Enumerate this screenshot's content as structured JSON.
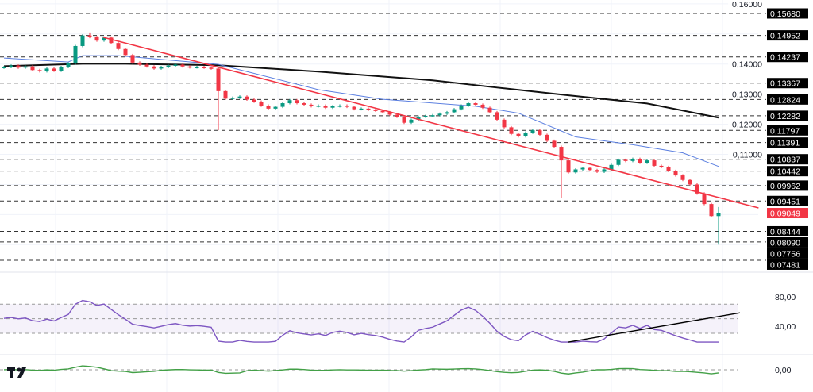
{
  "chart_data": {
    "type": "candlestick",
    "title": "",
    "colors": {
      "up": "#089981",
      "down": "#f23645",
      "ma_short": "#5b7fe0",
      "ma_long": "#111111",
      "trendline": "#f23645",
      "rsi": "#7e57c2",
      "momentum": "#43a047",
      "price_label": "#f23645"
    },
    "price_axis": {
      "range": [
        0.0735,
        0.1605
      ],
      "ticks": [
        "0,16000",
        "0,14000",
        "0,13000",
        "0,12000",
        "0,11000"
      ],
      "tick_values": [
        0.16,
        0.14,
        0.13,
        0.12,
        0.11
      ]
    },
    "levels": [
      {
        "value": 0.1568,
        "label": "0,15680"
      },
      {
        "value": 0.14952,
        "label": "0,14952"
      },
      {
        "value": 0.14237,
        "label": "0,14237"
      },
      {
        "value": 0.13367,
        "label": "0,13367"
      },
      {
        "value": 0.12824,
        "label": "0,12824"
      },
      {
        "value": 0.12282,
        "label": "0,12282"
      },
      {
        "value": 0.11797,
        "label": "0,11797"
      },
      {
        "value": 0.11391,
        "label": "0,11391"
      },
      {
        "value": 0.10837,
        "label": "0,10837"
      },
      {
        "value": 0.10442,
        "label": "0,10442"
      },
      {
        "value": 0.09962,
        "label": "0,09962"
      },
      {
        "value": 0.09451,
        "label": "0,09451"
      },
      {
        "value": 0.08444,
        "label": "0,08444"
      },
      {
        "value": 0.0809,
        "label": "0,08090"
      },
      {
        "value": 0.07756,
        "label": "0,07756"
      },
      {
        "value": 0.07481,
        "label": "0,07481"
      }
    ],
    "current_price": {
      "value": 0.09049,
      "label": "0,09049"
    },
    "closes": [
      0.139,
      0.1395,
      0.1388,
      0.1392,
      0.138,
      0.1376,
      0.1385,
      0.1378,
      0.139,
      0.1402,
      0.146,
      0.1495,
      0.149,
      0.1478,
      0.1488,
      0.147,
      0.145,
      0.143,
      0.1405,
      0.1398,
      0.1392,
      0.1385,
      0.139,
      0.1395,
      0.1398,
      0.1392,
      0.1389,
      0.139,
      0.1388,
      0.1385,
      0.131,
      0.1285,
      0.1288,
      0.1292,
      0.1282,
      0.1275,
      0.1262,
      0.1252,
      0.1258,
      0.127,
      0.128,
      0.127,
      0.1265,
      0.126,
      0.1262,
      0.1255,
      0.126,
      0.1262,
      0.1258,
      0.125,
      0.1252,
      0.1248,
      0.1245,
      0.124,
      0.1232,
      0.1225,
      0.1205,
      0.1215,
      0.1225,
      0.1228,
      0.123,
      0.1235,
      0.124,
      0.125,
      0.1262,
      0.127,
      0.1265,
      0.1255,
      0.124,
      0.1215,
      0.119,
      0.1168,
      0.116,
      0.1172,
      0.118,
      0.1165,
      0.1145,
      0.1125,
      0.108,
      0.104,
      0.105,
      0.1055,
      0.1048,
      0.1042,
      0.105,
      0.1065,
      0.1082,
      0.1078,
      0.1085,
      0.1072,
      0.108,
      0.1062,
      0.1058,
      0.1045,
      0.103,
      0.1015,
      0.1,
      0.097,
      0.0935,
      0.0895,
      0.0905
    ],
    "first_open": 0.1388,
    "long_wicks": [
      {
        "i": 30,
        "low": 0.118
      },
      {
        "i": 78,
        "low": 0.0955
      },
      {
        "i": 100,
        "low": 0.08,
        "high": 0.0925
      },
      {
        "i": 12,
        "high": 0.1505
      }
    ],
    "ma_short": [
      [
        0,
        0.142
      ],
      [
        9,
        0.1407
      ],
      [
        11,
        0.1428
      ],
      [
        16,
        0.1428
      ],
      [
        30,
        0.1399
      ],
      [
        44,
        0.1315
      ],
      [
        53,
        0.1283
      ],
      [
        66,
        0.126
      ],
      [
        72,
        0.1237
      ],
      [
        80,
        0.1158
      ],
      [
        88,
        0.1132
      ],
      [
        95,
        0.1105
      ],
      [
        100,
        0.106
      ]
    ],
    "ma_long": [
      [
        0,
        0.1393
      ],
      [
        11,
        0.1401
      ],
      [
        17,
        0.1401
      ],
      [
        30,
        0.1396
      ],
      [
        44,
        0.1375
      ],
      [
        60,
        0.1346
      ],
      [
        69,
        0.1322
      ],
      [
        79,
        0.1296
      ],
      [
        90,
        0.1269
      ],
      [
        100,
        0.1222
      ]
    ],
    "trendline": [
      [
        13.9,
        0.1489
      ],
      [
        105.6,
        0.0922
      ]
    ],
    "rsi": {
      "range": [
        0,
        100
      ],
      "band": [
        30,
        70
      ],
      "mid": 50,
      "ticks": [
        "80,00",
        "40,00"
      ],
      "tick_values": [
        80,
        40
      ],
      "trendline": [
        [
          79,
          18
        ],
        [
          103,
          58
        ]
      ]
    },
    "momentum": {
      "ticks": [
        "0,00"
      ],
      "tick_values": [
        0
      ]
    }
  }
}
